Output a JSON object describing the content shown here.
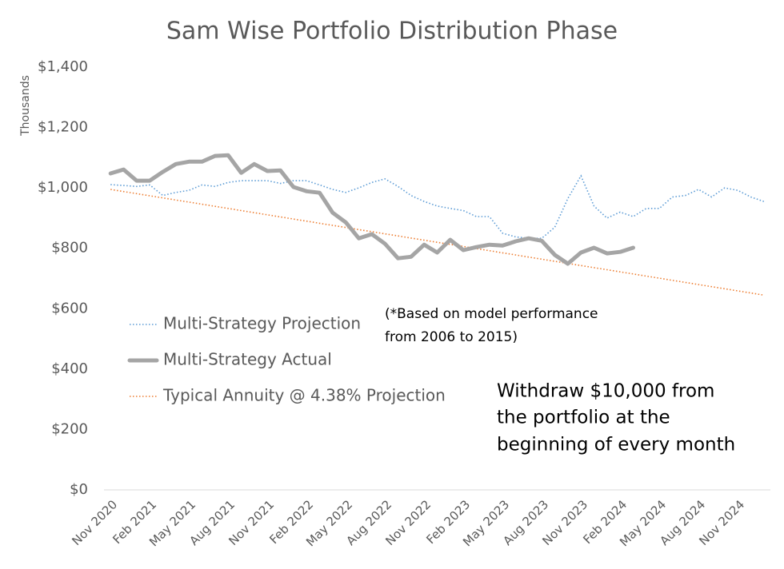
{
  "chart_data": {
    "type": "line",
    "title": "Sam Wise Portfolio Distribution Phase",
    "y_label": "Thousands",
    "categories": [
      "Nov 2020",
      null,
      null,
      "Feb 2021",
      null,
      null,
      "May 2021",
      null,
      null,
      "Aug 2021",
      null,
      null,
      "Nov 2021",
      null,
      null,
      "Feb 2022",
      null,
      null,
      "May 2022",
      null,
      null,
      "Aug 2022",
      null,
      null,
      "Nov 2022",
      null,
      null,
      "Feb 2023",
      null,
      null,
      "May 2023",
      null,
      null,
      "Aug 2023",
      null,
      null,
      "Nov 2023",
      null,
      null,
      "Feb 2024",
      null,
      null,
      "May 2024",
      null,
      null,
      "Aug 2024",
      null,
      null,
      "Nov 2024",
      null,
      null
    ],
    "series": [
      {
        "name": "Multi-Strategy Projection",
        "color": "#5b9bd5",
        "style": "dotted",
        "values": [
          1011,
          1008,
          1005,
          1010,
          975,
          985,
          992,
          1010,
          1005,
          1018,
          1024,
          1024,
          1024,
          1015,
          1024,
          1024,
          1010,
          995,
          985,
          1000,
          1018,
          1030,
          1005,
          975,
          955,
          940,
          932,
          925,
          905,
          905,
          850,
          838,
          833,
          833,
          870,
          965,
          1040,
          940,
          900,
          920,
          905,
          932,
          932,
          970,
          975,
          995,
          970,
          1000,
          992,
          970,
          955
        ]
      },
      {
        "name": "Multi-Strategy Actual",
        "color": "#a5a5a5",
        "style": "solid",
        "values": [
          1048,
          1061,
          1024,
          1024,
          1053,
          1079,
          1087,
          1087,
          1106,
          1108,
          1050,
          1079,
          1056,
          1058,
          1003,
          989,
          984,
          918,
          886,
          833,
          847,
          815,
          767,
          772,
          812,
          786,
          828,
          794,
          804,
          812,
          809,
          823,
          833,
          825,
          778,
          749,
          786,
          802,
          783,
          788,
          802,
          null,
          null,
          null,
          null,
          null,
          null,
          null,
          null,
          null,
          null
        ]
      },
      {
        "name": "Typical Annuity @ 4.38% Projection",
        "color": "#ed7d31",
        "style": "dotted",
        "values": [
          995,
          988,
          981,
          974,
          967,
          960,
          953,
          946,
          939,
          932,
          925,
          918,
          911,
          904,
          897,
          890,
          883,
          876,
          869,
          862,
          855,
          848,
          841,
          834,
          827,
          820,
          813,
          806,
          799,
          792,
          785,
          778,
          771,
          764,
          757,
          750,
          743,
          736,
          729,
          722,
          715,
          708,
          701,
          694,
          687,
          680,
          673,
          666,
          659,
          652,
          645
        ]
      }
    ],
    "ylim": [
      0,
      1400
    ],
    "yticks": [
      {
        "value": 0,
        "label": "$0"
      },
      {
        "value": 200,
        "label": "$200"
      },
      {
        "value": 400,
        "label": "$400"
      },
      {
        "value": 600,
        "label": "$600"
      },
      {
        "value": 800,
        "label": "$800"
      },
      {
        "value": 1000,
        "label": "$1,000"
      },
      {
        "value": 1200,
        "label": "$1,200"
      },
      {
        "value": 1400,
        "label": "$1,400"
      }
    ],
    "grid": false,
    "legend": "left",
    "annotations": [
      "(*Based on model performance",
      "from 2006 to 2015)",
      "Withdraw $10,000 from",
      "the portfolio at the",
      "beginning of every month"
    ]
  }
}
